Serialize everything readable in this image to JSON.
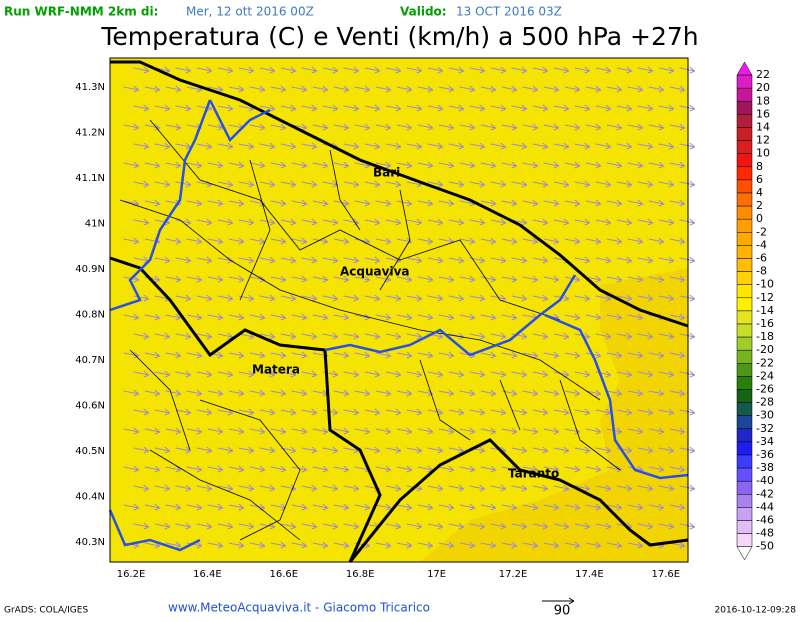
{
  "header": {
    "run_label": "Run WRF-NMM 2km di:",
    "run_date": "Mer, 12 ott 2016 00Z",
    "valid_label": "Valido:",
    "valid_date": "13 OCT 2016 03Z"
  },
  "title": "Temperatura (C) e Venti (km/h) a 500 hPa +27h",
  "map": {
    "lat_labels": [
      "41.3N",
      "41.2N",
      "41.1N",
      "41N",
      "40.9N",
      "40.8N",
      "40.7N",
      "40.6N",
      "40.5N",
      "40.4N",
      "40.3N"
    ],
    "lon_labels": [
      "16.2E",
      "16.4E",
      "16.6E",
      "16.8E",
      "17E",
      "17.2E",
      "17.4E",
      "17.6E"
    ],
    "places": [
      "Bari",
      "Acquaviva",
      "Matera",
      "Taranto"
    ]
  },
  "colorbar": {
    "labels": [
      22,
      20,
      18,
      16,
      14,
      12,
      10,
      8,
      6,
      4,
      2,
      0,
      -2,
      -4,
      -6,
      -8,
      -10,
      -12,
      -14,
      -16,
      -18,
      -20,
      -22,
      -24,
      -26,
      -28,
      -30,
      -32,
      -34,
      -36,
      -38,
      -40,
      -42,
      -44,
      -46,
      -48,
      -50
    ],
    "colors": [
      "#f019f0",
      "#dc1ec8",
      "#c8149b",
      "#a0145a",
      "#b41e3c",
      "#c81e28",
      "#dc1e1e",
      "#f01414",
      "#ff2800",
      "#ff5000",
      "#ff6e00",
      "#ff8c00",
      "#ffa000",
      "#ffaa00",
      "#ffb400",
      "#ffbe00",
      "#ffd200",
      "#ffe600",
      "#fff000",
      "#e6e61e",
      "#c8dc28",
      "#a0cd28",
      "#78b41e",
      "#509614",
      "#28820a",
      "#146414",
      "#145a50",
      "#1e4696",
      "#1e28c8",
      "#1e1ef0",
      "#3c3cff",
      "#6450ff",
      "#8c64f0",
      "#aa82f0",
      "#c8a0f5",
      "#e1bef5",
      "#f5d7fa",
      "#ffffff"
    ]
  },
  "footer": {
    "credit_left": "GrADS: COLA/IGES",
    "site": "www.MeteoAcquaviva.it - Giacomo Tricarico",
    "vector_scale": "90",
    "timestamp": "2016-10-12-09:28"
  }
}
